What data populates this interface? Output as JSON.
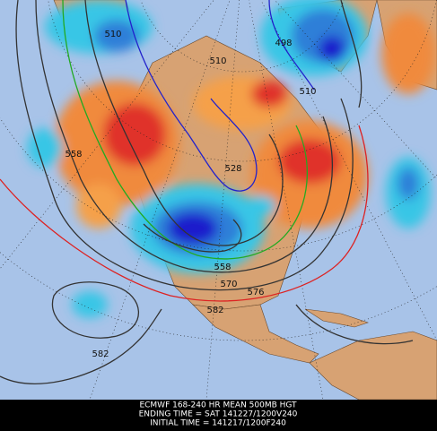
{
  "contour_labels": [
    "510",
    "498",
    "510",
    "510",
    "528",
    "558",
    "558",
    "570",
    "576",
    "582",
    "582"
  ],
  "caption": {
    "lines": [
      "ECMWF 168-240 HR MEAN 500MB HGT",
      "ENDING TIME = SAT 141227/1200V240",
      "INITIAL TIME = 141217/1200F240"
    ]
  }
}
